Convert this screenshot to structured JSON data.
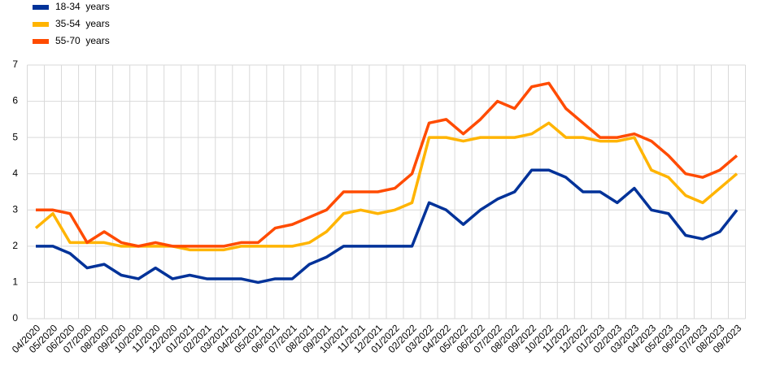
{
  "chart_data": {
    "type": "line",
    "categories": [
      "04/2020",
      "05/2020",
      "06/2020",
      "07/2020",
      "08/2020",
      "09/2020",
      "10/2020",
      "11/2020",
      "12/2020",
      "01/2021",
      "02/2021",
      "03/2021",
      "04/2021",
      "05/2021",
      "06/2021",
      "07/2021",
      "08/2021",
      "09/2021",
      "10/2021",
      "11/2021",
      "12/2021",
      "01/2022",
      "02/2022",
      "03/2022",
      "04/2022",
      "05/2022",
      "06/2022",
      "07/2022",
      "08/2022",
      "09/2022",
      "10/2022",
      "11/2022",
      "12/2022",
      "01/2023",
      "02/2023",
      "03/2023",
      "04/2023",
      "05/2023",
      "06/2023",
      "07/2023",
      "08/2023",
      "09/2023"
    ],
    "series": [
      {
        "name": "18-34  years",
        "color": "#003299",
        "values": [
          2.0,
          2.0,
          1.8,
          1.4,
          1.5,
          1.2,
          1.1,
          1.4,
          1.1,
          1.2,
          1.1,
          1.1,
          1.1,
          1.0,
          1.1,
          1.1,
          1.5,
          1.7,
          2.0,
          2.0,
          2.0,
          2.0,
          2.0,
          3.2,
          3.0,
          2.6,
          3.0,
          3.3,
          3.5,
          4.1,
          4.1,
          3.9,
          3.5,
          3.5,
          3.2,
          3.6,
          3.0,
          2.9,
          2.3,
          2.2,
          2.4,
          3.0
        ]
      },
      {
        "name": "35-54  years",
        "color": "#ffb400",
        "values": [
          2.5,
          2.9,
          2.1,
          2.1,
          2.1,
          2.0,
          2.0,
          2.0,
          2.0,
          1.9,
          1.9,
          1.9,
          2.0,
          2.0,
          2.0,
          2.0,
          2.1,
          2.4,
          2.9,
          3.0,
          2.9,
          3.0,
          3.2,
          5.0,
          5.0,
          4.9,
          5.0,
          5.0,
          5.0,
          5.1,
          5.4,
          5.0,
          5.0,
          4.9,
          4.9,
          5.0,
          4.1,
          3.9,
          3.4,
          3.2,
          3.6,
          4.0
        ]
      },
      {
        "name": "55-70  years",
        "color": "#ff4b00",
        "values": [
          3.0,
          3.0,
          2.9,
          2.1,
          2.4,
          2.1,
          2.0,
          2.1,
          2.0,
          2.0,
          2.0,
          2.0,
          2.1,
          2.1,
          2.5,
          2.6,
          2.8,
          3.0,
          3.5,
          3.5,
          3.5,
          3.6,
          4.0,
          5.4,
          5.5,
          5.1,
          5.5,
          6.0,
          5.8,
          6.4,
          6.5,
          5.8,
          5.4,
          5.0,
          5.0,
          5.1,
          4.9,
          4.5,
          4.0,
          3.9,
          4.1,
          4.5
        ]
      }
    ],
    "ylim": [
      0,
      7
    ],
    "yticks": [
      0,
      1,
      2,
      3,
      4,
      5,
      6,
      7
    ],
    "grid": true,
    "legend": "top-left"
  }
}
